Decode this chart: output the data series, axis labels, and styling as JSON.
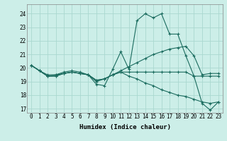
{
  "xlabel": "Humidex (Indice chaleur)",
  "background_color": "#cceee8",
  "grid_color": "#aad8d0",
  "line_color": "#1a6b5e",
  "xlim": [
    -0.5,
    23.5
  ],
  "ylim": [
    16.7,
    24.7
  ],
  "yticks": [
    17,
    18,
    19,
    20,
    21,
    22,
    23,
    24
  ],
  "xticks": [
    0,
    1,
    2,
    3,
    4,
    5,
    6,
    7,
    8,
    9,
    10,
    11,
    12,
    13,
    14,
    15,
    16,
    17,
    18,
    19,
    20,
    21,
    22,
    23
  ],
  "series": [
    [
      20.2,
      19.8,
      19.4,
      19.4,
      19.6,
      19.7,
      19.6,
      19.5,
      18.8,
      18.7,
      19.9,
      21.2,
      19.9,
      23.5,
      24.0,
      23.7,
      24.0,
      22.5,
      22.5,
      20.9,
      19.4,
      17.4,
      16.9,
      17.5
    ],
    [
      20.2,
      19.8,
      19.5,
      19.5,
      19.7,
      19.8,
      19.7,
      19.5,
      19.1,
      19.2,
      19.5,
      19.8,
      20.1,
      20.4,
      20.7,
      21.0,
      21.2,
      21.4,
      21.5,
      21.6,
      20.9,
      19.5,
      19.6,
      19.6
    ],
    [
      20.2,
      19.8,
      19.4,
      19.5,
      19.6,
      19.7,
      19.6,
      19.5,
      19.1,
      19.2,
      19.5,
      19.7,
      19.7,
      19.7,
      19.7,
      19.7,
      19.7,
      19.7,
      19.7,
      19.7,
      19.4,
      19.4,
      19.4,
      19.4
    ],
    [
      20.2,
      19.8,
      19.4,
      19.4,
      19.6,
      19.7,
      19.6,
      19.5,
      19.0,
      19.2,
      19.5,
      19.7,
      19.4,
      19.2,
      18.9,
      18.7,
      18.4,
      18.2,
      18.0,
      17.9,
      17.7,
      17.5,
      17.4,
      17.5
    ]
  ]
}
